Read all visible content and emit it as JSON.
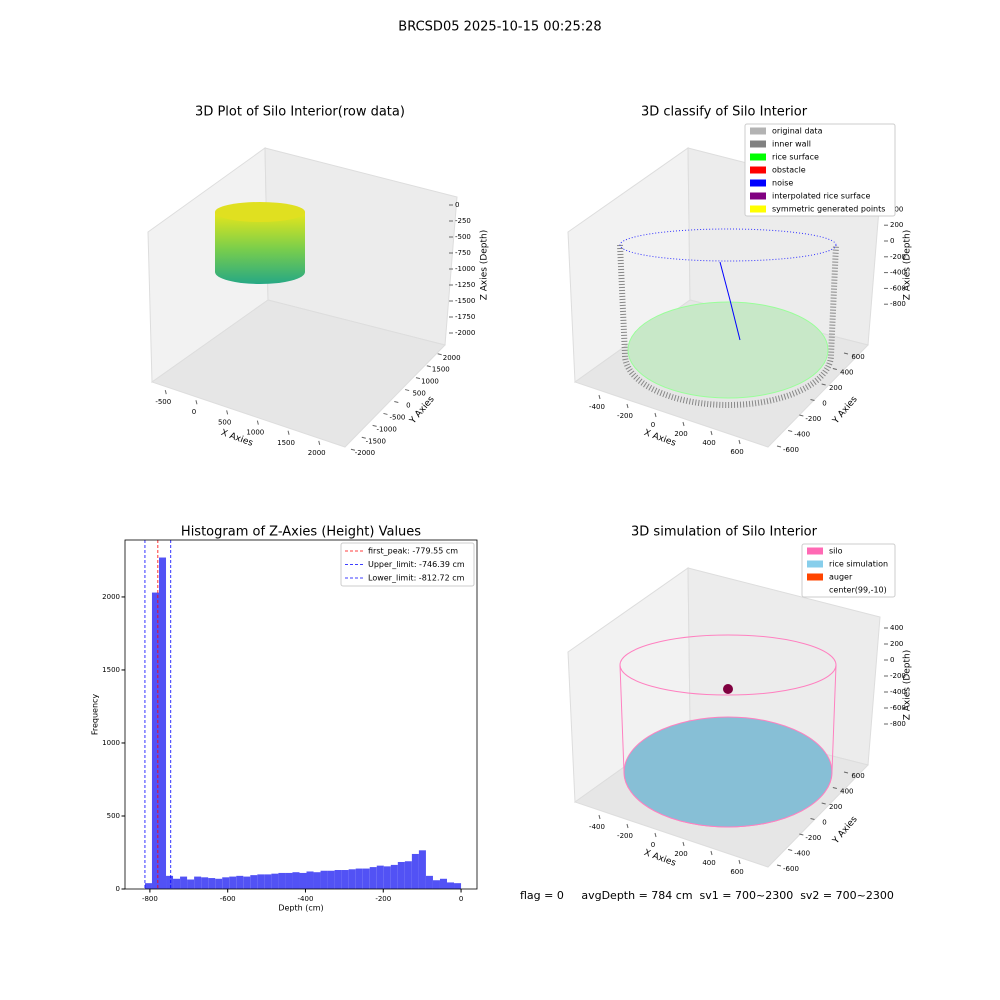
{
  "title": "BRCSD05 2025-10-15 00:25:28",
  "footer": "flag = 0     avgDepth = 784 cm  sv1 = 700~2300  sv2 = 700~2300",
  "chart_data": [
    {
      "type": "scatter3d",
      "title": "3D Plot of Silo Interior(row data)",
      "xlabel": "X Axies",
      "ylabel": "Y Axies",
      "zlabel": "Z Axies (Depth)",
      "xlim": [
        -700,
        2200
      ],
      "xticks": [
        -500,
        0,
        500,
        1000,
        1500,
        2000
      ],
      "ylim": [
        -2200,
        2200
      ],
      "yticks": [
        -2000,
        -1500,
        -1000,
        -500,
        0,
        500,
        1000,
        1500,
        2000
      ],
      "zlim": [
        -2100,
        100
      ],
      "zticks": [
        0,
        -250,
        -500,
        -750,
        -1000,
        -1250,
        -1500,
        -1750,
        -2000
      ]
    },
    {
      "type": "scatter3d",
      "title": "3D classify of Silo Interior",
      "xlabel": "X Axies",
      "ylabel": "Y Axies",
      "zlabel": "Z Axies (Depth)",
      "xlim": [
        -500,
        700
      ],
      "xticks": [
        -400,
        -200,
        0,
        200,
        400,
        600
      ],
      "ylim": [
        -700,
        700
      ],
      "yticks": [
        -600,
        -400,
        -200,
        0,
        200,
        400,
        600
      ],
      "zlim": [
        -900,
        500
      ],
      "zticks": [
        400,
        200,
        0,
        -200,
        -400,
        -600,
        -800
      ],
      "legend_entries": [
        {
          "name": "original data",
          "color": "#b3b3b3"
        },
        {
          "name": "inner wall",
          "color": "#808080"
        },
        {
          "name": "rice surface",
          "color": "#00ff00"
        },
        {
          "name": "obstacle",
          "color": "#ff0000"
        },
        {
          "name": "noise",
          "color": "#0000ff"
        },
        {
          "name": "interpolated rice surface",
          "color": "#800080"
        },
        {
          "name": "symmetric generated points",
          "color": "#ffff00"
        }
      ]
    },
    {
      "type": "histogram",
      "title": "Histogram of Z-Axies (Height) Values",
      "xlabel": "Depth (cm)",
      "ylabel": "Frequency",
      "color": "#5252f5",
      "bins": [
        -812.72,
        -794.66,
        -776.6,
        -758.54,
        -740.48,
        -722.42,
        -704.36,
        -686.3,
        -668.24,
        -650.18,
        -632.12,
        -614.06,
        -596.0,
        -577.94,
        -559.88,
        -541.82,
        -523.76,
        -505.7,
        -487.64,
        -469.58,
        -451.52,
        -433.46,
        -415.4,
        -397.34,
        -379.28,
        -361.22,
        -343.16,
        -325.1,
        -307.04,
        -288.98,
        -270.92,
        -252.86,
        -234.8,
        -216.74,
        -198.68,
        -180.62,
        -162.56,
        -144.5,
        -126.44,
        -108.38,
        -90.32,
        -72.26,
        -54.2,
        -36.14,
        -18.08,
        0
      ],
      "values": [
        40,
        2030,
        2270,
        90,
        70,
        85,
        65,
        85,
        80,
        75,
        70,
        80,
        85,
        90,
        85,
        95,
        100,
        100,
        105,
        110,
        110,
        115,
        110,
        120,
        115,
        125,
        125,
        130,
        130,
        135,
        140,
        140,
        150,
        160,
        155,
        165,
        185,
        190,
        240,
        265,
        90,
        60,
        70,
        45,
        40
      ],
      "xlim": [
        -864,
        41
      ],
      "xticks": [
        -800,
        -600,
        -400,
        -200,
        0
      ],
      "ylim": [
        0,
        2390
      ],
      "yticks": [
        0,
        500,
        1000,
        1500,
        2000
      ],
      "vlines": [
        {
          "value": -779.55,
          "label": "first_peak: -779.55 cm",
          "color": "#ff0000"
        },
        {
          "value": -746.39,
          "label": "Upper_limit: -746.39 cm",
          "color": "#0000ff"
        },
        {
          "value": -812.72,
          "label": "Lower_limit: -812.72 cm",
          "color": "#0000ff"
        }
      ]
    },
    {
      "type": "scatter3d",
      "title": "3D simulation of Silo Interior",
      "xlabel": "X Axies",
      "ylabel": "Y Axies",
      "zlabel": "Z Axies (Depth)",
      "xlim": [
        -500,
        700
      ],
      "xticks": [
        -400,
        -200,
        0,
        200,
        400,
        600
      ],
      "ylim": [
        -700,
        700
      ],
      "yticks": [
        -600,
        -400,
        -200,
        0,
        200,
        400,
        600
      ],
      "zlim": [
        -900,
        500
      ],
      "zticks": [
        400,
        200,
        0,
        -200,
        -400,
        -600,
        -800
      ],
      "legend_entries": [
        {
          "name": "silo",
          "color": "#ff69b4"
        },
        {
          "name": "rice simulation",
          "color": "#87ceeb"
        },
        {
          "name": "auger",
          "color": "#ff4500"
        },
        {
          "name": "center(99,-10)",
          "color": "#ffffff"
        }
      ]
    }
  ]
}
